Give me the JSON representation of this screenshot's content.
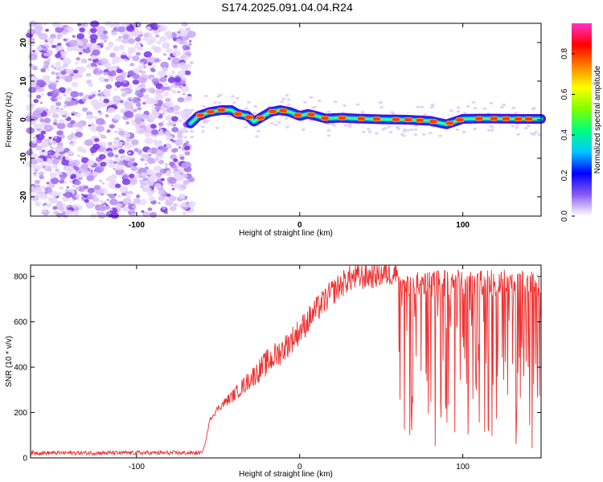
{
  "title": "S174.2025.091.04.04.R24",
  "chart_data": [
    {
      "type": "heatmap",
      "name": "spectrogram",
      "xlabel": "Height of straight line (km)",
      "ylabel": "Frequency (Hz)",
      "xlim": [
        -165,
        148
      ],
      "ylim": [
        -25,
        25
      ],
      "xticks": [
        -100,
        0,
        100
      ],
      "xtick_labels": [
        "-100",
        "0",
        "100"
      ],
      "yticks": [
        -20,
        -10,
        0,
        10,
        20
      ],
      "ytick_labels": [
        "-20",
        "-10",
        "0",
        "10",
        "20"
      ],
      "noise_region_x": [
        -165,
        -67
      ],
      "ridge": {
        "x": [
          -67,
          -62,
          -55,
          -48,
          -42,
          -38,
          -32,
          -28,
          -24,
          -18,
          -12,
          -6,
          0,
          5,
          10,
          16,
          25,
          35,
          50,
          65,
          80,
          90,
          95,
          100,
          110,
          120,
          135,
          148
        ],
        "y": [
          -1,
          1,
          2,
          2.5,
          2.5,
          1.5,
          1,
          -0.5,
          0.5,
          2,
          2.5,
          2,
          1,
          1.5,
          1,
          0.3,
          0.5,
          0.3,
          0.1,
          0,
          -0.3,
          -1.2,
          -0.5,
          0.2,
          0.3,
          0.3,
          0.2,
          0.2
        ]
      },
      "colorbar": {
        "label": "Normalized spectral amplitude",
        "range": [
          0,
          0.95
        ],
        "ticks": [
          0.0,
          0.2,
          0.4,
          0.6,
          0.8
        ],
        "tick_labels": [
          "0.0",
          "0.2",
          "0.4",
          "0.6",
          "0.8"
        ],
        "colors": [
          "#ffffff",
          "#8a5cf0",
          "#0000ff",
          "#00c8ff",
          "#00ff80",
          "#80ff00",
          "#ffff00",
          "#ff8000",
          "#ff0000",
          "#ff33cc"
        ]
      }
    },
    {
      "type": "line",
      "name": "snr",
      "xlabel": "Height of straight line (km)",
      "ylabel": "SNR (10 * v/v)",
      "xlim": [
        -165,
        148
      ],
      "ylim": [
        0,
        850
      ],
      "xticks": [
        -100,
        0,
        100
      ],
      "xtick_labels": [
        "-100",
        "0",
        "100"
      ],
      "yticks": [
        0,
        200,
        400,
        600,
        800
      ],
      "ytick_labels": [
        "0",
        "200",
        "400",
        "600",
        "800"
      ],
      "color": "#f03030",
      "envelope": {
        "x": [
          -165,
          -60,
          -58,
          -55,
          -50,
          -40,
          -30,
          -20,
          -10,
          0,
          10,
          20,
          30,
          40,
          50,
          60,
          148
        ],
        "mean": [
          22,
          22,
          60,
          170,
          220,
          280,
          350,
          420,
          480,
          560,
          650,
          730,
          790,
          800,
          810,
          820,
          820
        ]
      }
    }
  ]
}
